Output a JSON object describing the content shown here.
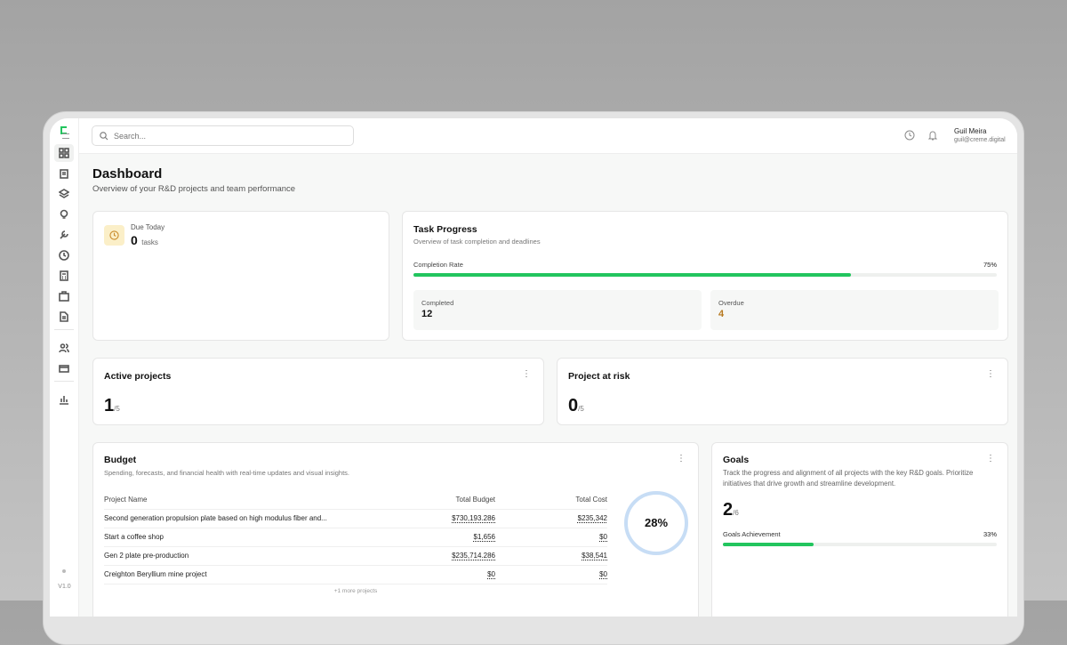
{
  "sidebar": {
    "version": "V1.0",
    "items": [
      "dashboard",
      "tasks",
      "layers",
      "ideas",
      "tools",
      "time",
      "calculator",
      "briefcase",
      "documents",
      "team",
      "billing",
      "reports"
    ]
  },
  "header": {
    "search_placeholder": "Search...",
    "user_name": "Guil Meira",
    "user_email": "guil@creme.digital"
  },
  "page": {
    "title": "Dashboard",
    "subtitle": "Overview of your R&D projects and team performance"
  },
  "due_today": {
    "label": "Due Today",
    "count": "0",
    "unit": "tasks"
  },
  "task_progress": {
    "title": "Task Progress",
    "subtitle": "Overview of task completion and deadlines",
    "rate_label": "Completion Rate",
    "rate": "75%",
    "rate_value": 75,
    "completed_label": "Completed",
    "completed": "12",
    "overdue_label": "Overdue",
    "overdue": "4"
  },
  "active_projects": {
    "title": "Active projects",
    "value": "1",
    "total": "/5"
  },
  "at_risk": {
    "title": "Project at risk",
    "value": "0",
    "total": "/5"
  },
  "budget": {
    "title": "Budget",
    "subtitle": "Spending, forecasts, and financial health with real-time updates and visual insights.",
    "columns": [
      "Project Name",
      "Total Budget",
      "Total Cost"
    ],
    "rows": [
      [
        "Second generation propulsion plate based on high modulus fiber and...",
        "$730,193.286",
        "$235,342"
      ],
      [
        "Start a coffee shop",
        "$1,656",
        "$0"
      ],
      [
        "Gen 2 plate pre-production",
        "$235,714.286",
        "$38,541"
      ],
      [
        "Creighton Beryllium mine project",
        "$0",
        "$0"
      ]
    ],
    "more": "+1 more projects",
    "percent": "28%",
    "percent_value": 28
  },
  "goals": {
    "title": "Goals",
    "description": "Track the progress and alignment of all projects with the key R&D goals. Prioritize initiatives that drive growth and streamline development.",
    "value": "2",
    "total": "/6",
    "achievement_label": "Goals Achievement",
    "achievement": "33%",
    "achievement_value": 33
  },
  "colors": {
    "accent": "#22c55e",
    "overdue": "#b7791f",
    "ring": "#c7ddf5"
  }
}
